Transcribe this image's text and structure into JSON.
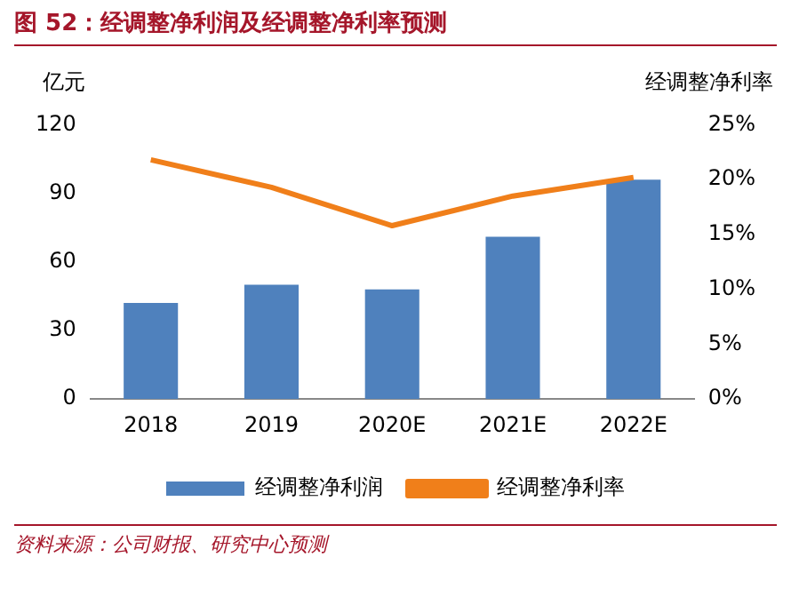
{
  "chart_data": {
    "type": "bar",
    "title": "图 52：经调整净利润及经调整净利率预测",
    "ylabel": "亿元",
    "y2label": "经调整净利率",
    "categories": [
      "2018",
      "2019",
      "2020E",
      "2021E",
      "2022E"
    ],
    "series": [
      {
        "name": "经调整净利润",
        "color": "#4f81bd",
        "values": [
          42,
          50,
          48,
          71,
          96
        ]
      },
      {
        "name": "经调整净利率",
        "type": "line",
        "axis": "y2",
        "color": "#f07f1a",
        "values": [
          21.8,
          19.3,
          15.8,
          18.5,
          20.2
        ],
        "marker": "none"
      }
    ],
    "ylim": [
      0,
      120
    ],
    "yticks": [
      0,
      30,
      60,
      90,
      120
    ],
    "y2lim": [
      0,
      25
    ],
    "y2ticks": [
      {
        "value": 0,
        "label": "0%"
      },
      {
        "value": 5,
        "label": "5%"
      },
      {
        "value": 10,
        "label": "10%"
      },
      {
        "value": 15,
        "label": "15%"
      },
      {
        "value": 20,
        "label": "20%"
      },
      {
        "value": 25,
        "label": "25%"
      }
    ],
    "grid": false,
    "legend": "bottom",
    "annotations": [
      "资料来源：公司财报、研究中心预测"
    ]
  }
}
